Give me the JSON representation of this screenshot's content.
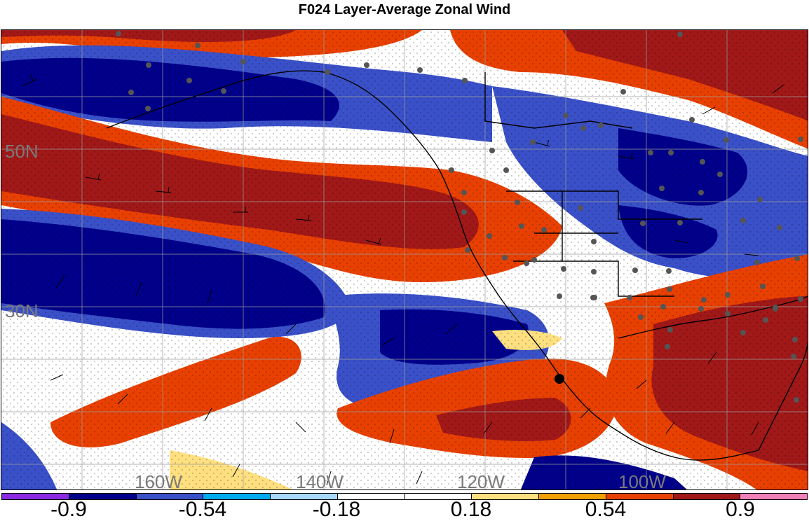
{
  "title": "F024 Layer-Average Zonal Wind",
  "lat_labels": [
    "50N",
    "30N"
  ],
  "lon_labels": [
    "160W",
    "140W",
    "120W",
    "100W"
  ],
  "colorbar": {
    "colors": [
      "#8a2be2",
      "#00008b",
      "#3a50c8",
      "#00aaee",
      "#a8d8f8",
      "#ffffff",
      "#ffffff",
      "#ffe080",
      "#f0a000",
      "#e84000",
      "#a01818",
      "#f080b8"
    ],
    "labels": [
      "-0.9",
      "-0.54",
      "-0.18",
      "0.18",
      "0.54",
      "0.9"
    ]
  },
  "legend_colors": {
    "strong_negative": "#00008b",
    "negative": "#3a50c8",
    "weak_negative": "#00aaee",
    "very_weak_negative": "#a8d8f8",
    "weak_positive": "#ffe080",
    "positive": "#f0a000",
    "strong_positive": "#e84000",
    "very_strong_positive": "#a01818",
    "station_marker": "#555555"
  }
}
